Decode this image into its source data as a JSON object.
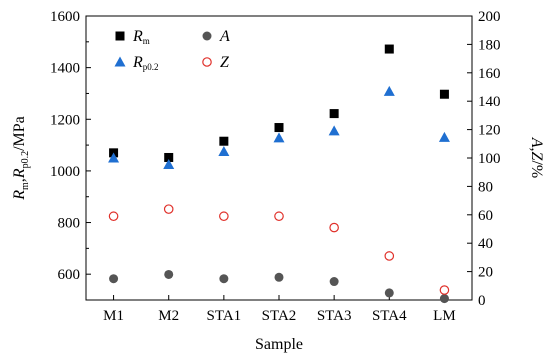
{
  "chart_data": {
    "type": "scatter",
    "xlabel": "Sample",
    "ylabel_left": {
      "parts": [
        {
          "text": "R",
          "italic": true,
          "sub": false
        },
        {
          "text": "m",
          "italic": false,
          "sub": true
        },
        {
          "text": ",",
          "italic": false,
          "sub": false
        },
        {
          "text": "R",
          "italic": true,
          "sub": false
        },
        {
          "text": "p0.2",
          "italic": false,
          "sub": true
        },
        {
          "text": "/MPa",
          "italic": false,
          "sub": false
        }
      ]
    },
    "ylabel_right": {
      "parts": [
        {
          "text": "A",
          "italic": true,
          "sub": false
        },
        {
          "text": ",",
          "italic": false,
          "sub": false
        },
        {
          "text": "Z",
          "italic": true,
          "sub": false
        },
        {
          "text": "/%",
          "italic": false,
          "sub": false
        }
      ]
    },
    "categories": [
      "M1",
      "M2",
      "STA1",
      "STA2",
      "STA3",
      "STA4",
      "LM"
    ],
    "y_left": {
      "range": [
        500,
        1600
      ],
      "ticks": [
        600,
        800,
        1000,
        1200,
        1400,
        1600
      ]
    },
    "y_right": {
      "range": [
        0,
        200
      ],
      "ticks": [
        0,
        20,
        40,
        60,
        80,
        100,
        120,
        140,
        160,
        180,
        200
      ]
    },
    "grid": false,
    "legend_position": "top-left",
    "series": [
      {
        "name": "R",
        "sub": "m",
        "axis": "left",
        "marker": "square",
        "color": "#000000",
        "values": [
          1070,
          1052,
          1115,
          1168,
          1222,
          1472,
          1297
        ]
      },
      {
        "name": "R",
        "sub": "p0.2",
        "axis": "left",
        "marker": "triangle",
        "color": "#1f6fd1",
        "values": [
          1050,
          1025,
          1075,
          1128,
          1155,
          1308,
          1130
        ]
      },
      {
        "name": "A",
        "sub": "",
        "axis": "right",
        "marker": "circle",
        "color": "#555555",
        "values": [
          15,
          18,
          15,
          16,
          13,
          5,
          1
        ]
      },
      {
        "name": "Z",
        "sub": "",
        "axis": "right",
        "marker": "open-circle",
        "color": "#e0302a",
        "values": [
          59,
          64,
          59,
          59,
          51,
          31,
          7
        ]
      }
    ]
  }
}
